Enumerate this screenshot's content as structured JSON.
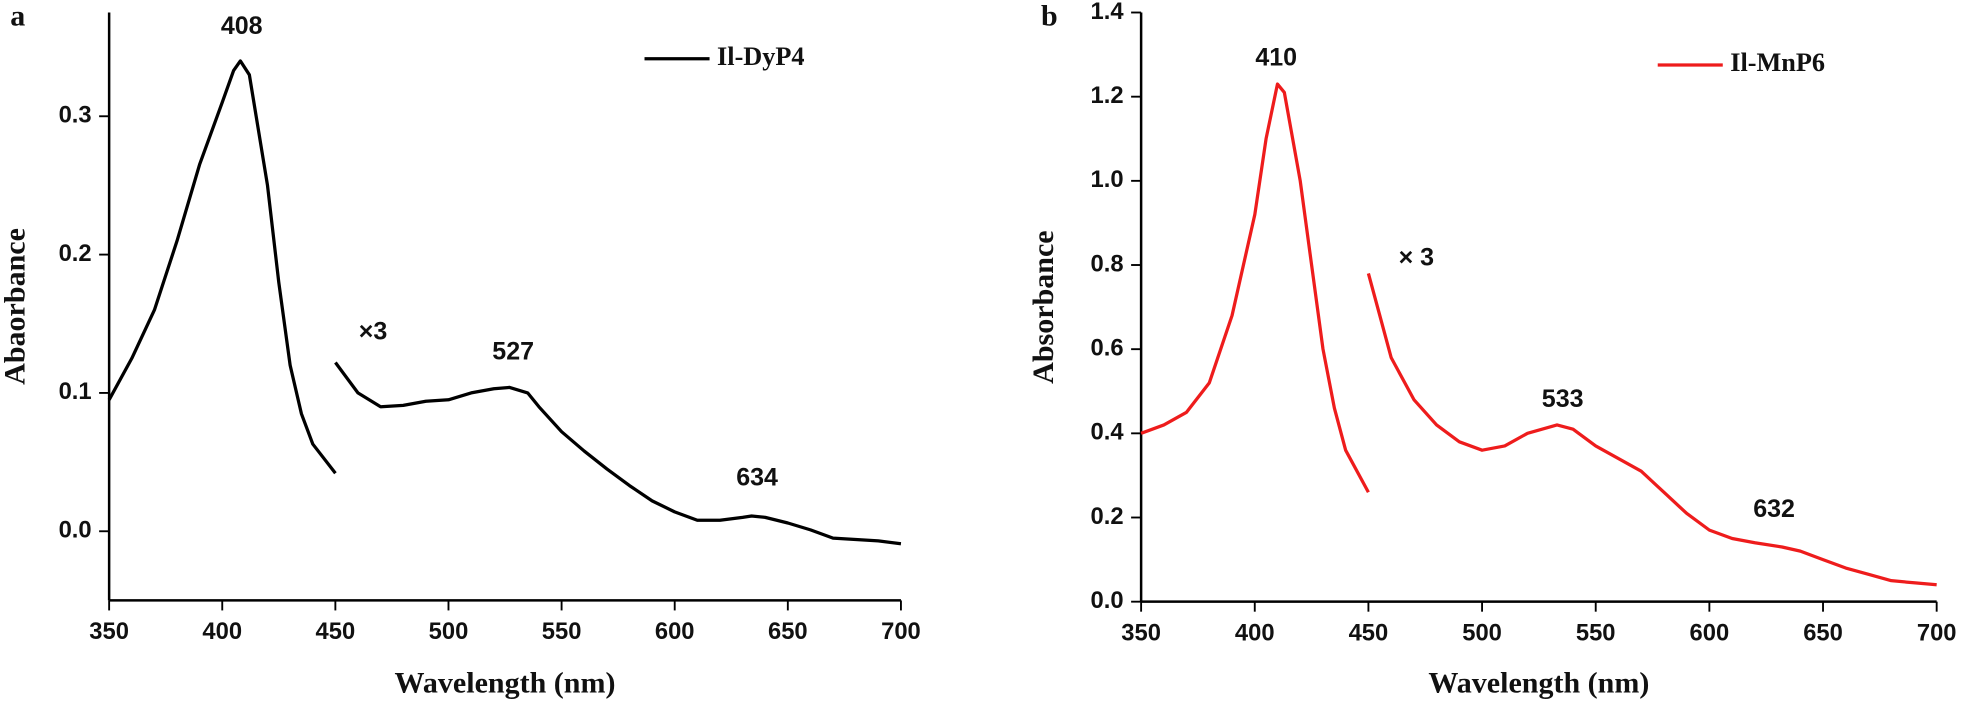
{
  "chart_data": [
    {
      "type": "line",
      "panel_label": "a",
      "x_label": "Wavelength (nm)",
      "y_label": "Abaorbance",
      "xlim": [
        350,
        700
      ],
      "xticks": [
        350,
        400,
        450,
        500,
        550,
        600,
        650,
        700
      ],
      "ylim": [
        -0.05,
        0.375
      ],
      "yticks": [
        {
          "value": 0,
          "label": "0.0"
        },
        0.1,
        0.2,
        0.3
      ],
      "legend": "upper right",
      "annotations": [
        "408",
        "×3",
        "527",
        "634"
      ],
      "series": [
        {
          "name": "Il-DyP4",
          "color": "#000000",
          "x": [
            350,
            360,
            370,
            380,
            390,
            400,
            405,
            408,
            412,
            420,
            425,
            430,
            435,
            440,
            450,
            450,
            450,
            460,
            470,
            480,
            490,
            500,
            510,
            520,
            527,
            535,
            540,
            550,
            560,
            570,
            580,
            590,
            600,
            610,
            620,
            630,
            634,
            640,
            650,
            660,
            670,
            680,
            690,
            700
          ],
          "values": [
            0.095,
            0.125,
            0.16,
            0.21,
            0.265,
            0.31,
            0.333,
            0.34,
            0.33,
            0.25,
            0.18,
            0.12,
            0.085,
            0.063,
            0.042,
            null,
            0.122,
            0.1,
            0.09,
            0.091,
            0.094,
            0.095,
            0.1,
            0.103,
            0.104,
            0.1,
            0.09,
            0.072,
            0.058,
            0.045,
            0.033,
            0.022,
            0.014,
            0.008,
            0.008,
            0.01,
            0.011,
            0.01,
            0.006,
            0.001,
            -0.005,
            -0.006,
            -0.007,
            -0.009
          ]
        }
      ]
    },
    {
      "type": "line",
      "panel_label": "b",
      "x_label": "Wavelength (nm)",
      "y_label": "Absorbance",
      "xlim": [
        350,
        700
      ],
      "xticks": [
        350,
        400,
        450,
        500,
        550,
        600,
        650,
        700
      ],
      "ylim": [
        0,
        1.4
      ],
      "yticks": [
        {
          "value": 0,
          "label": "0.0"
        },
        0.2,
        0.4,
        0.6,
        0.8,
        {
          "value": 1,
          "label": "1.0"
        },
        1.2,
        1.4
      ],
      "legend": "upper right",
      "annotations": [
        "410",
        "× 3",
        "533",
        "632"
      ],
      "series": [
        {
          "name": "Il-MnP6",
          "color": "#ee1c1c",
          "x": [
            350,
            360,
            370,
            380,
            390,
            400,
            405,
            410,
            413,
            420,
            425,
            430,
            435,
            440,
            450,
            450,
            450,
            455,
            460,
            470,
            480,
            490,
            500,
            510,
            520,
            533,
            540,
            550,
            560,
            570,
            580,
            590,
            600,
            610,
            620,
            632,
            640,
            650,
            660,
            670,
            680,
            690,
            700
          ],
          "values": [
            0.4,
            0.42,
            0.45,
            0.52,
            0.68,
            0.92,
            1.1,
            1.23,
            1.21,
            1.0,
            0.8,
            0.6,
            0.46,
            0.36,
            0.26,
            null,
            0.78,
            0.68,
            0.58,
            0.48,
            0.42,
            0.38,
            0.36,
            0.37,
            0.4,
            0.42,
            0.41,
            0.37,
            0.34,
            0.31,
            0.26,
            0.21,
            0.17,
            0.15,
            0.14,
            0.13,
            0.12,
            0.1,
            0.08,
            0.065,
            0.05,
            0.045,
            0.04
          ]
        }
      ]
    }
  ]
}
